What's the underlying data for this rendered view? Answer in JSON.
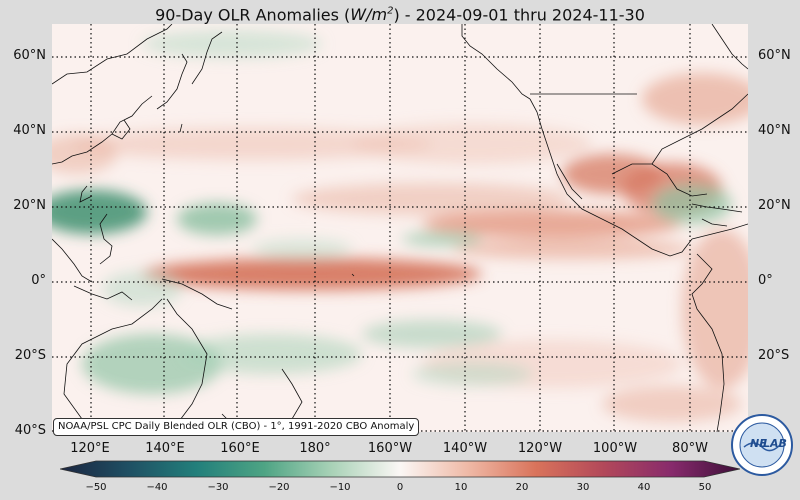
{
  "title_prefix": "90-Day OLR Anomalies (",
  "title_unit_base": "W/m",
  "title_unit_exp": "2",
  "title_suffix": ") - 2024-09-01 thru 2024-11-30",
  "latitudes": [
    "60°N",
    "40°N",
    "20°N",
    "0°",
    "20°S",
    "40°S"
  ],
  "longitudes": [
    "120°E",
    "140°E",
    "160°E",
    "180°",
    "160°W",
    "140°W",
    "120°W",
    "100°W",
    "80°W"
  ],
  "credit": "NOAA/PSL CPC Daily Blended OLR (CBO) - 1°, 1991-2020 CBO Anomaly",
  "colorbar": {
    "min": -50,
    "max": 50,
    "ticks": [
      "−50",
      "−40",
      "−30",
      "−20",
      "−10",
      "0",
      "10",
      "20",
      "30",
      "40",
      "50"
    ]
  },
  "logo": {
    "text_a": "NE",
    "text_b": "LAB"
  },
  "colors": {
    "positive": "#d7735a",
    "negative": "#57a07a",
    "neutral": "#fbf1ee"
  }
}
